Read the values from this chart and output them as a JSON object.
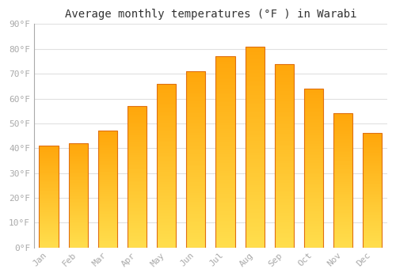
{
  "title": "Average monthly temperatures (°F ) in Warabi",
  "months": [
    "Jan",
    "Feb",
    "Mar",
    "Apr",
    "May",
    "Jun",
    "Jul",
    "Aug",
    "Sep",
    "Oct",
    "Nov",
    "Dec"
  ],
  "values": [
    41,
    42,
    47,
    57,
    66,
    71,
    77,
    81,
    74,
    64,
    54,
    46
  ],
  "bar_color": "#FFA726",
  "bar_color_light": "#FFD54F",
  "bar_edge_color": "#E07010",
  "ylim": [
    0,
    90
  ],
  "yticks": [
    0,
    10,
    20,
    30,
    40,
    50,
    60,
    70,
    80,
    90
  ],
  "ytick_labels": [
    "0°F",
    "10°F",
    "20°F",
    "30°F",
    "40°F",
    "50°F",
    "60°F",
    "70°F",
    "80°F",
    "90°F"
  ],
  "grid_color": "#e0e0e0",
  "bg_color": "#ffffff",
  "title_fontsize": 10,
  "tick_fontsize": 8,
  "tick_color": "#aaaaaa",
  "left_spine_color": "#aaaaaa",
  "bar_width": 0.65
}
